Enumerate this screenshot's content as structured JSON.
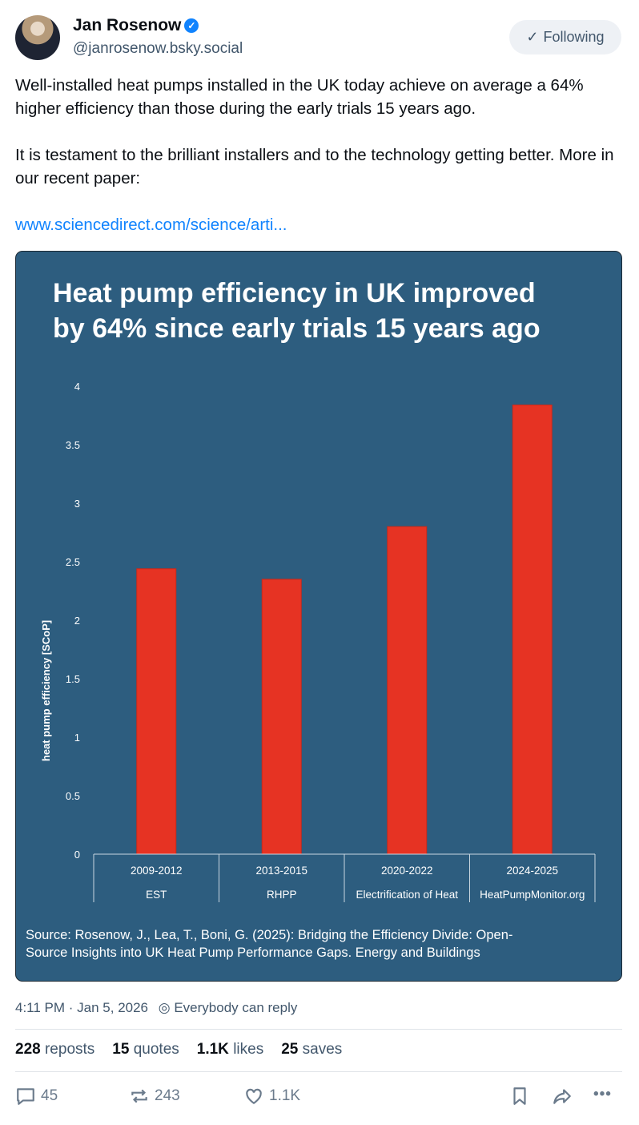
{
  "author": {
    "name": "Jan Rosenow",
    "handle": "@janrosenow.bsky.social",
    "follow_label": "Following"
  },
  "post": {
    "paragraphs": [
      "Well-installed heat pumps installed in the UK today achieve on average a 64% higher efficiency than those during the early trials 15 years ago.",
      "It is testament to the brilliant installers and to the technology getting better. More in our recent paper:"
    ],
    "link": "www.sciencedirect.com/science/arti..."
  },
  "chart_data": {
    "type": "bar",
    "title_lines": [
      "Heat pump efficiency in UK improved",
      "by 64% since early trials 15 years ago"
    ],
    "categories": [
      "2009-2012",
      "2013-2015",
      "2020-2022",
      "2024-2025"
    ],
    "subcategories": [
      "EST",
      "RHPP",
      "Electrification of Heat",
      "HeatPumpMonitor.org"
    ],
    "values": [
      2.44,
      2.35,
      2.8,
      3.84
    ],
    "ylabel": "heat pump efficiency [SCoP]",
    "ylim": [
      0,
      4
    ],
    "yticks": [
      "0",
      "0.5",
      "1",
      "1.5",
      "2",
      "2.5",
      "3",
      "3.5",
      "4"
    ],
    "grid": false,
    "source_lines": [
      "Source: Rosenow, J., Lea, T., Boni, G. (2025): Bridging the Efficiency Divide: Open-",
      "Source Insights into UK Heat Pump Performance Gaps. Energy and Buildings"
    ],
    "colors": {
      "background": "#2d5d7f",
      "bar": "#e63323",
      "text": "#ffffff"
    }
  },
  "meta": {
    "timestamp": "4:11 PM · Jan 5, 2026",
    "reply_setting": "Everybody can reply"
  },
  "stats": [
    {
      "count": "228",
      "label": "reposts"
    },
    {
      "count": "15",
      "label": "quotes"
    },
    {
      "count": "1.1K",
      "label": "likes"
    },
    {
      "count": "25",
      "label": "saves"
    }
  ],
  "actions": {
    "replies": "45",
    "reposts": "243",
    "likes": "1.1K"
  }
}
